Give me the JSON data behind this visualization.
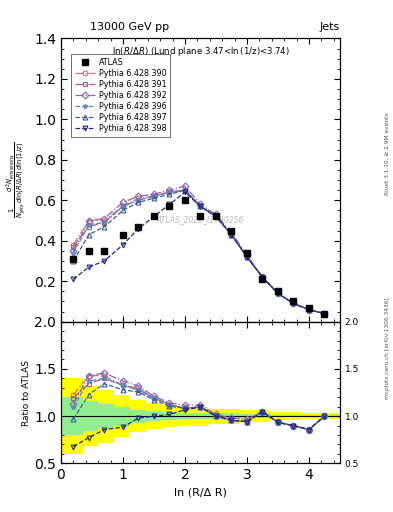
{
  "title_left": "13000 GeV pp",
  "title_right": "Jets",
  "panel_title": "ln(R/Δ R) (Lund plane 3.47<ln(1/z)<3.74)",
  "xlabel": "ln (R/Δ R)",
  "ylabel_main_line1": "d² Nₑₘⁱˢˢⁱₒₙˢ",
  "ylabel_ratio": "Ratio to ATLAS",
  "watermark": "ATLAS_2020_I1790256",
  "right_label": "Rivet 3.1.10, ≥ 2.9M events",
  "right_label2": "mcplots.cern.ch [arXiv:1306.3436]",
  "x_atlas": [
    0.2,
    0.45,
    0.7,
    1.0,
    1.25,
    1.5,
    1.75,
    2.0,
    2.25,
    2.5,
    2.75,
    3.0,
    3.25,
    3.5,
    3.75,
    4.0,
    4.25
  ],
  "y_atlas": [
    0.31,
    0.35,
    0.35,
    0.43,
    0.47,
    0.52,
    0.57,
    0.6,
    0.52,
    0.52,
    0.45,
    0.34,
    0.21,
    0.15,
    0.1,
    0.07,
    0.04
  ],
  "x_390": [
    0.2,
    0.45,
    0.7,
    1.0,
    1.25,
    1.5,
    1.75,
    2.0,
    2.25,
    2.5,
    2.75,
    3.0,
    3.25,
    3.5,
    3.75,
    4.0,
    4.25
  ],
  "y_390": [
    0.38,
    0.5,
    0.5,
    0.57,
    0.61,
    0.62,
    0.64,
    0.65,
    0.57,
    0.52,
    0.43,
    0.32,
    0.22,
    0.14,
    0.09,
    0.06,
    0.04
  ],
  "x_391": [
    0.2,
    0.45,
    0.7,
    1.0,
    1.25,
    1.5,
    1.75,
    2.0,
    2.25,
    2.5,
    2.75,
    3.0,
    3.25,
    3.5,
    3.75,
    4.0,
    4.25
  ],
  "y_391": [
    0.37,
    0.47,
    0.49,
    0.57,
    0.6,
    0.62,
    0.64,
    0.65,
    0.57,
    0.52,
    0.43,
    0.32,
    0.22,
    0.14,
    0.09,
    0.06,
    0.04
  ],
  "x_392": [
    0.2,
    0.45,
    0.7,
    1.0,
    1.25,
    1.5,
    1.75,
    2.0,
    2.25,
    2.5,
    2.75,
    3.0,
    3.25,
    3.5,
    3.75,
    4.0,
    4.25
  ],
  "y_392": [
    0.35,
    0.5,
    0.51,
    0.59,
    0.62,
    0.63,
    0.65,
    0.67,
    0.58,
    0.53,
    0.44,
    0.33,
    0.22,
    0.14,
    0.09,
    0.06,
    0.04
  ],
  "x_396": [
    0.2,
    0.45,
    0.7,
    1.0,
    1.25,
    1.5,
    1.75,
    2.0,
    2.25,
    2.5,
    2.75,
    3.0,
    3.25,
    3.5,
    3.75,
    4.0,
    4.25
  ],
  "y_396": [
    0.34,
    0.48,
    0.49,
    0.57,
    0.6,
    0.62,
    0.64,
    0.65,
    0.57,
    0.52,
    0.43,
    0.32,
    0.22,
    0.14,
    0.09,
    0.06,
    0.04
  ],
  "x_397": [
    0.2,
    0.45,
    0.7,
    1.0,
    1.25,
    1.5,
    1.75,
    2.0,
    2.25,
    2.5,
    2.75,
    3.0,
    3.25,
    3.5,
    3.75,
    4.0,
    4.25
  ],
  "y_397": [
    0.3,
    0.43,
    0.47,
    0.55,
    0.59,
    0.61,
    0.63,
    0.65,
    0.57,
    0.52,
    0.43,
    0.32,
    0.22,
    0.14,
    0.09,
    0.06,
    0.04
  ],
  "x_398": [
    0.2,
    0.45,
    0.7,
    1.0,
    1.25,
    1.5,
    1.75,
    2.0,
    2.25,
    2.5,
    2.75,
    3.0,
    3.25,
    3.5,
    3.75,
    4.0,
    4.25
  ],
  "y_398": [
    0.21,
    0.27,
    0.3,
    0.38,
    0.46,
    0.52,
    0.58,
    0.64,
    0.57,
    0.52,
    0.43,
    0.32,
    0.22,
    0.14,
    0.09,
    0.06,
    0.04
  ],
  "color_390": "#c87878",
  "color_391": "#b05880",
  "color_392": "#9060b0",
  "color_396": "#5888c0",
  "color_397": "#3860a0",
  "color_398": "#202878",
  "band_x": [
    0.0,
    0.35,
    0.6,
    0.85,
    1.12,
    1.37,
    1.62,
    1.87,
    2.37,
    2.87,
    3.37,
    3.87,
    4.37
  ],
  "band_x2": [
    0.35,
    0.6,
    0.85,
    1.12,
    1.37,
    1.62,
    1.87,
    2.37,
    2.87,
    3.37,
    3.87,
    4.37,
    4.5
  ],
  "band_stat_lo": [
    0.6,
    0.68,
    0.72,
    0.78,
    0.83,
    0.86,
    0.88,
    0.9,
    0.92,
    0.94,
    0.96,
    0.97,
    0.97
  ],
  "band_stat_hi": [
    1.4,
    1.32,
    1.28,
    1.22,
    1.17,
    1.14,
    1.12,
    1.1,
    1.08,
    1.06,
    1.04,
    1.03,
    1.03
  ],
  "band_sys_lo": [
    0.8,
    0.84,
    0.87,
    0.9,
    0.93,
    0.95,
    0.96,
    0.97,
    0.97,
    0.98,
    0.99,
    0.99,
    0.99
  ],
  "band_sys_hi": [
    1.2,
    1.16,
    1.13,
    1.1,
    1.07,
    1.05,
    1.04,
    1.03,
    1.03,
    1.02,
    1.01,
    1.01,
    1.01
  ],
  "ylim_main": [
    0.0,
    1.4
  ],
  "ylim_ratio": [
    0.5,
    2.0
  ],
  "xlim": [
    0.0,
    4.5
  ],
  "yticks_main": [
    0.2,
    0.4,
    0.6,
    0.8,
    1.0,
    1.2,
    1.4
  ],
  "yticks_ratio": [
    0.5,
    1.0,
    1.5,
    2.0
  ],
  "xticks": [
    0,
    1,
    2,
    3,
    4
  ]
}
